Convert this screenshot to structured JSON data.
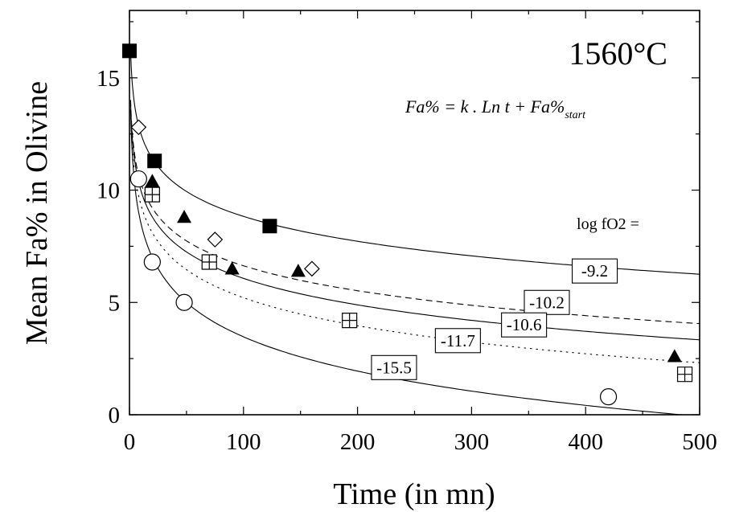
{
  "chart_data": {
    "type": "scatter",
    "title": "1560°C",
    "equation": {
      "main": "Fa% = k . Ln t + Fa%",
      "subscript": "start"
    },
    "xlabel": "Time (in mn)",
    "ylabel": "Mean Fa% in Olivine",
    "xlim": [
      0,
      500
    ],
    "ylim": [
      0,
      18
    ],
    "xticks": [
      0,
      100,
      200,
      300,
      400,
      500
    ],
    "yticks": [
      0,
      5,
      10,
      15
    ],
    "xtick_labels": [
      "0",
      "100",
      "200",
      "300",
      "400",
      "500"
    ],
    "ytick_labels": [
      "0",
      "5",
      "10",
      "15"
    ],
    "legend_title": "log fO2 =",
    "series": [
      {
        "name": "-9.2",
        "marker": "filled-square",
        "dash": "solid",
        "fit": {
          "k": -1.6,
          "start": 16.2
        },
        "x": [
          0,
          22,
          123
        ],
        "y": [
          16.2,
          11.3,
          8.4
        ]
      },
      {
        "name": "-10.2",
        "marker": "open-diamond",
        "dash": "dashed",
        "fit": {
          "k": -1.6,
          "start": 14.0
        },
        "x": [
          8,
          75,
          160
        ],
        "y": [
          12.8,
          7.8,
          6.5
        ]
      },
      {
        "name": "-10.6",
        "marker": "filled-triangle",
        "dash": "solid",
        "fit": {
          "k": -1.7,
          "start": 13.9
        },
        "x": [
          20,
          48,
          90,
          148,
          478
        ],
        "y": [
          10.4,
          8.8,
          6.5,
          6.4,
          2.6
        ]
      },
      {
        "name": "-11.7",
        "marker": "boxed-plus",
        "dash": "dotted",
        "fit": {
          "k": -1.8,
          "start": 13.5
        },
        "x": [
          20,
          70,
          193,
          487
        ],
        "y": [
          9.8,
          6.8,
          4.2,
          1.8
        ]
      },
      {
        "name": "-15.5",
        "marker": "open-circle",
        "dash": "solid",
        "fit": {
          "k": -2.2,
          "start": 13.6
        },
        "x": [
          8,
          20,
          48,
          420
        ],
        "y": [
          10.5,
          6.8,
          5.0,
          0.8
        ]
      }
    ],
    "curve_labels": [
      {
        "series": "-9.2",
        "x": 408,
        "y": 6.4
      },
      {
        "series": "-10.2",
        "x": 366,
        "y": 5.0
      },
      {
        "series": "-10.6",
        "x": 346,
        "y": 4.0
      },
      {
        "series": "-11.7",
        "x": 288,
        "y": 3.3
      },
      {
        "series": "-15.5",
        "x": 232,
        "y": 2.1
      }
    ],
    "grid": false,
    "legend": "right"
  }
}
